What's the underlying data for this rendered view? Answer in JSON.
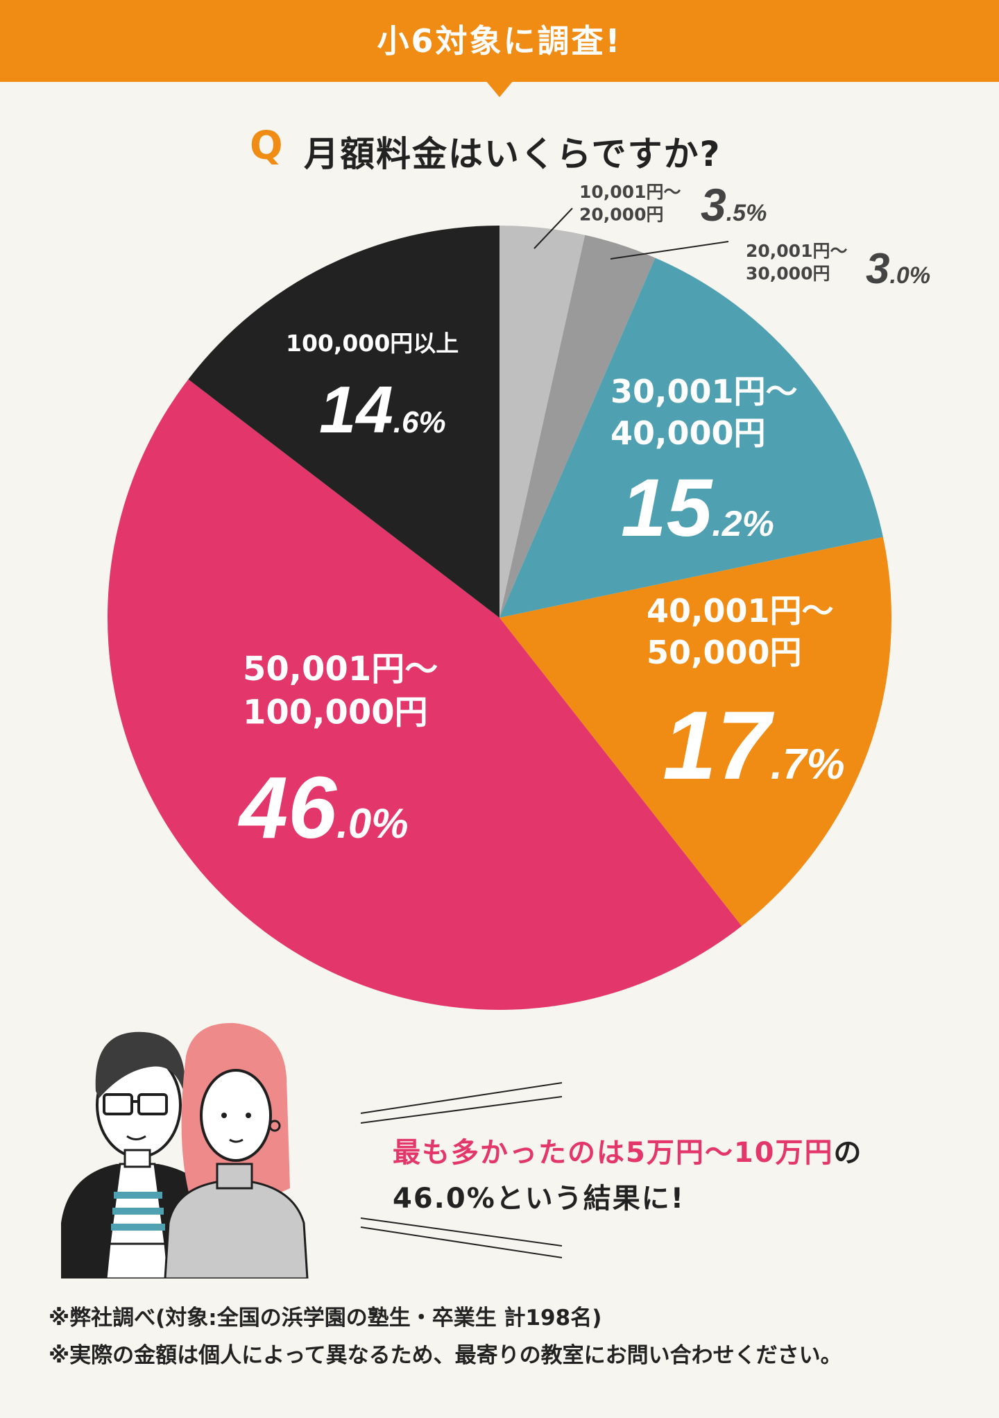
{
  "banner": {
    "text": "小6対象に調査!"
  },
  "question": {
    "mark": "Q",
    "text": "月額料金はいくらですか?"
  },
  "chart_data": {
    "type": "pie",
    "title": "月額料金はいくらですか?",
    "slices": [
      {
        "label_lines": [
          "10,001円〜",
          "20,000円"
        ],
        "value": 3.5,
        "pct_int": "3",
        "pct_dec": ".5%",
        "color": "#bfbfbf"
      },
      {
        "label_lines": [
          "20,001円〜",
          "30,000円"
        ],
        "value": 3.0,
        "pct_int": "3",
        "pct_dec": ".0%",
        "color": "#9a9a9a"
      },
      {
        "label_lines": [
          "30,001円〜",
          "40,000円"
        ],
        "value": 15.2,
        "pct_int": "15",
        "pct_dec": ".2%",
        "color": "#4fa1b2"
      },
      {
        "label_lines": [
          "40,001円〜",
          "50,000円"
        ],
        "value": 17.7,
        "pct_int": "17",
        "pct_dec": ".7%",
        "color": "#f08c13"
      },
      {
        "label_lines": [
          "50,001円〜",
          "100,000円"
        ],
        "value": 46.0,
        "pct_int": "46",
        "pct_dec": ".0%",
        "color": "#e3376b"
      },
      {
        "label_lines": [
          "100,000円以上"
        ],
        "value": 14.6,
        "pct_int": "14",
        "pct_dec": ".6%",
        "color": "#222222"
      }
    ]
  },
  "caption": {
    "line1_highlight": "最も多かったのは5万円〜10万円",
    "line1_rest": "の",
    "line2": "46.0%という結果に!"
  },
  "notes": [
    "※弊社調べ(対象:全国の浜学園の塾生・卒業生 計198名)",
    "※実際の金額は個人によって異なるため、最寄りの教室にお問い合わせください。"
  ]
}
